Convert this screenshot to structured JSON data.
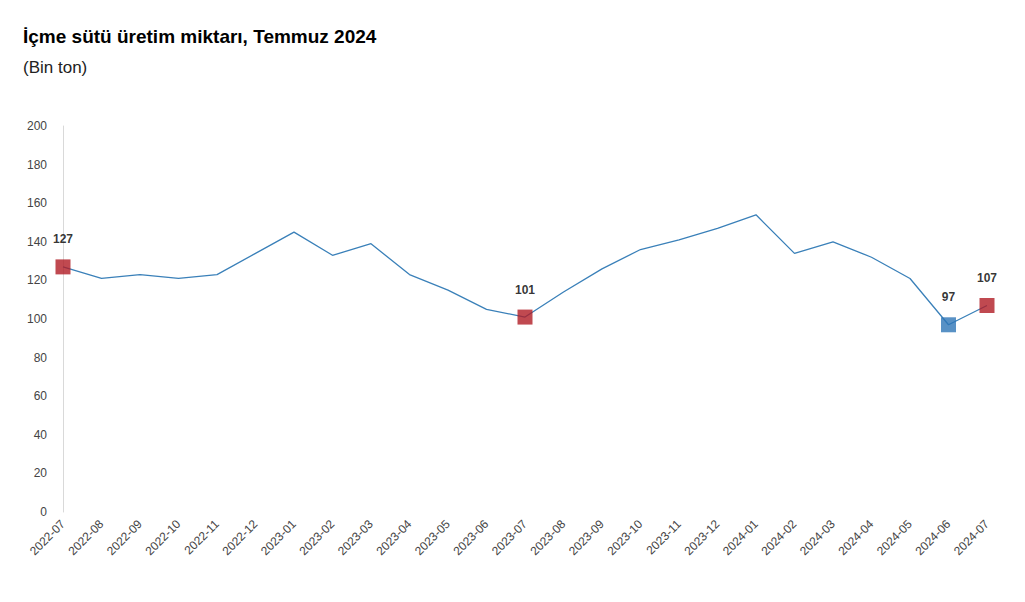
{
  "chart_data": {
    "type": "line",
    "title": "İçme sütü üretim miktarı, Temmuz 2024",
    "subtitle": "(Bin ton)",
    "categories": [
      "2022-07",
      "2022-08",
      "2022-09",
      "2022-10",
      "2022-11",
      "2022-12",
      "2023-01",
      "2023-02",
      "2023-03",
      "2023-04",
      "2023-05",
      "2023-06",
      "2023-07",
      "2023-08",
      "2023-09",
      "2023-10",
      "2023-11",
      "2023-12",
      "2024-01",
      "2024-02",
      "2024-03",
      "2024-04",
      "2024-05",
      "2024-06",
      "2024-07"
    ],
    "values": [
      127,
      121,
      123,
      121,
      123,
      134,
      145,
      133,
      139,
      123,
      115,
      105,
      101,
      114,
      126,
      136,
      141,
      147,
      154,
      134,
      140,
      132,
      121,
      97,
      107
    ],
    "color": "#3a80b9",
    "ylim": [
      0,
      200
    ],
    "yticks": [
      0,
      20,
      40,
      60,
      80,
      100,
      120,
      140,
      160,
      180,
      200
    ],
    "grid": false,
    "annotations": [
      {
        "x": "2022-07",
        "value": 127,
        "color": "#b01c24",
        "marker": "square"
      },
      {
        "x": "2023-07",
        "value": 101,
        "color": "#b01c24",
        "marker": "square"
      },
      {
        "x": "2024-06",
        "value": 97,
        "color": "#2e75b6",
        "marker": "square"
      },
      {
        "x": "2024-07",
        "value": 107,
        "color": "#b01c24",
        "marker": "square"
      }
    ]
  }
}
